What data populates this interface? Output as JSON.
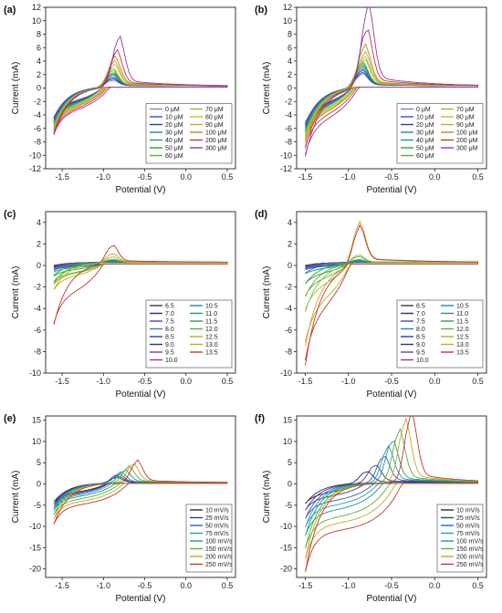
{
  "chart_data": [
    {
      "panel": "(a)",
      "type": "line",
      "xlabel": "Potential (V)",
      "ylabel": "Current (mA)",
      "xlim": [
        -1.7,
        0.6
      ],
      "ylim": [
        -12,
        12
      ],
      "xticks": [
        -1.5,
        -1.0,
        -0.5,
        0.0,
        0.5
      ],
      "yticks": [
        -12,
        -10,
        -8,
        -6,
        -4,
        -2,
        0,
        2,
        4,
        6,
        8,
        10,
        12
      ],
      "legend_columns": 2,
      "legend_position": "bottom-right",
      "series": [
        {
          "name": "0 μM",
          "color": "#8a79d6",
          "peak_x": -0.9,
          "peak": 0.9,
          "cath": -4.6
        },
        {
          "name": "10 μM",
          "color": "#3f48cc",
          "peak_x": -0.9,
          "peak": 1.1,
          "cath": -4.8
        },
        {
          "name": "20 μM",
          "color": "#1f3fb5",
          "peak_x": -0.9,
          "peak": 1.3,
          "cath": -5.0
        },
        {
          "name": "30 μM",
          "color": "#2e7dbd",
          "peak_x": -0.9,
          "peak": 1.6,
          "cath": -5.2
        },
        {
          "name": "40 μM",
          "color": "#1f9a7a",
          "peak_x": -0.9,
          "peak": 1.8,
          "cath": -5.4
        },
        {
          "name": "50 μM",
          "color": "#2f9e44",
          "peak_x": -0.9,
          "peak": 2.0,
          "cath": -5.6
        },
        {
          "name": "60 μM",
          "color": "#58b031",
          "peak_x": -0.9,
          "peak": 2.3,
          "cath": -5.8
        },
        {
          "name": "70 μM",
          "color": "#8ebf3a",
          "peak_x": -0.9,
          "peak": 2.6,
          "cath": -6.0
        },
        {
          "name": "80 μM",
          "color": "#b5c23a",
          "peak_x": -0.88,
          "peak": 3.0,
          "cath": -6.2
        },
        {
          "name": "90 μM",
          "color": "#caa52f",
          "peak_x": -0.88,
          "peak": 3.5,
          "cath": -6.4
        },
        {
          "name": "100 μM",
          "color": "#c8851f",
          "peak_x": -0.87,
          "peak": 4.0,
          "cath": -6.6
        },
        {
          "name": "200 μM",
          "color": "#c0392b",
          "peak_x": -0.85,
          "peak": 5.0,
          "cath": -7.0
        },
        {
          "name": "300 μM",
          "color": "#8e3aa8",
          "peak_x": -0.82,
          "peak": 6.9,
          "cath": -7.3
        }
      ]
    },
    {
      "panel": "(b)",
      "type": "line",
      "xlabel": "Potential (V)",
      "ylabel": "Current (mA)",
      "xlim": [
        -1.6,
        0.6
      ],
      "ylim": [
        -12,
        12
      ],
      "xticks": [
        -1.5,
        -1.0,
        -0.5,
        0.0,
        0.5
      ],
      "yticks": [
        -12,
        -10,
        -8,
        -6,
        -4,
        -2,
        0,
        2,
        4,
        6,
        8,
        10,
        12
      ],
      "legend_columns": 2,
      "legend_position": "bottom-right",
      "series": [
        {
          "name": "0 μM",
          "color": "#8a79d6",
          "peak_x": -0.85,
          "peak": 1.8,
          "cath": -5.5
        },
        {
          "name": "10 μM",
          "color": "#3f48cc",
          "peak_x": -0.85,
          "peak": 2.0,
          "cath": -5.8
        },
        {
          "name": "20 μM",
          "color": "#1f3fb5",
          "peak_x": -0.85,
          "peak": 2.3,
          "cath": -6.0
        },
        {
          "name": "30 μM",
          "color": "#2e7dbd",
          "peak_x": -0.85,
          "peak": 2.6,
          "cath": -6.2
        },
        {
          "name": "40 μM",
          "color": "#1f9a7a",
          "peak_x": -0.85,
          "peak": 2.9,
          "cath": -6.5
        },
        {
          "name": "50 μM",
          "color": "#2f9e44",
          "peak_x": -0.85,
          "peak": 3.2,
          "cath": -6.8
        },
        {
          "name": "60 μM",
          "color": "#58b031",
          "peak_x": -0.85,
          "peak": 3.5,
          "cath": -7.0
        },
        {
          "name": "70 μM",
          "color": "#8ebf3a",
          "peak_x": -0.83,
          "peak": 3.9,
          "cath": -7.3
        },
        {
          "name": "80 μM",
          "color": "#b5c23a",
          "peak_x": -0.83,
          "peak": 4.3,
          "cath": -7.6
        },
        {
          "name": "90 μM",
          "color": "#caa52f",
          "peak_x": -0.82,
          "peak": 4.8,
          "cath": -8.0
        },
        {
          "name": "100 μM",
          "color": "#c8851f",
          "peak_x": -0.82,
          "peak": 5.8,
          "cath": -8.4
        },
        {
          "name": "200 μM",
          "color": "#c0392b",
          "peak_x": -0.8,
          "peak": 8.2,
          "cath": -9.3
        },
        {
          "name": "300 μM",
          "color": "#8e3aa8",
          "peak_x": -0.78,
          "peak": 11.2,
          "cath": -10.5
        }
      ]
    },
    {
      "panel": "(c)",
      "type": "line",
      "xlabel": "Potential (V)",
      "ylabel": "Current (mA)",
      "xlim": [
        -1.7,
        0.6
      ],
      "ylim": [
        -10,
        5
      ],
      "xticks": [
        -1.5,
        -1.0,
        -0.5,
        0.0,
        0.5
      ],
      "yticks": [
        -10,
        -8,
        -6,
        -4,
        -2,
        0,
        2,
        4
      ],
      "legend_columns": 2,
      "legend_position": "bottom-right",
      "series": [
        {
          "name": "6.5",
          "color": "#3a3a3a",
          "peak_x": -0.9,
          "peak": 0.0,
          "cath": -0.3
        },
        {
          "name": "7.0",
          "color": "#2a2a7a",
          "peak_x": -0.9,
          "peak": 0.0,
          "cath": -0.3
        },
        {
          "name": "7.5",
          "color": "#3f48cc",
          "peak_x": -0.9,
          "peak": 0.0,
          "cath": -0.35
        },
        {
          "name": "8.0",
          "color": "#2e7dbd",
          "peak_x": -0.9,
          "peak": 0.0,
          "cath": -0.35
        },
        {
          "name": "8.5",
          "color": "#1f3fb5",
          "peak_x": -0.9,
          "peak": 0.05,
          "cath": -0.4
        },
        {
          "name": "9.0",
          "color": "#2a2a9a",
          "peak_x": -0.9,
          "peak": 0.05,
          "cath": -0.4
        },
        {
          "name": "9.5",
          "color": "#6b3fb5",
          "peak_x": -0.9,
          "peak": 0.05,
          "cath": -0.45
        },
        {
          "name": "10.0",
          "color": "#8e3aa8",
          "peak_x": -0.9,
          "peak": 0.1,
          "cath": -0.5
        },
        {
          "name": "10.5",
          "color": "#2e7dbd",
          "peak_x": -0.9,
          "peak": 0.1,
          "cath": -0.6
        },
        {
          "name": "11.0",
          "color": "#1f9a7a",
          "peak_x": -0.9,
          "peak": 0.15,
          "cath": -0.8
        },
        {
          "name": "11.5",
          "color": "#2f9e44",
          "peak_x": -0.9,
          "peak": 0.2,
          "cath": -1.2
        },
        {
          "name": "12.0",
          "color": "#58b031",
          "peak_x": -0.9,
          "peak": 0.3,
          "cath": -1.8
        },
        {
          "name": "12.5",
          "color": "#8ebf3a",
          "peak_x": -0.9,
          "peak": 0.5,
          "cath": -2.0
        },
        {
          "name": "13.0",
          "color": "#caa52f",
          "peak_x": -0.9,
          "peak": 0.8,
          "cath": -2.5
        },
        {
          "name": "13.5",
          "color": "#c0392b",
          "peak_x": -0.9,
          "peak": 1.6,
          "cath": -5.8
        }
      ]
    },
    {
      "panel": "(d)",
      "type": "line",
      "xlabel": "Potential (V)",
      "ylabel": "Current (mA)",
      "xlim": [
        -1.6,
        0.6
      ],
      "ylim": [
        -10,
        5
      ],
      "xticks": [
        -1.5,
        -1.0,
        -0.5,
        0.0,
        0.5
      ],
      "yticks": [
        -10,
        -8,
        -6,
        -4,
        -2,
        0,
        2,
        4
      ],
      "legend_columns": 2,
      "legend_position": "bottom-right",
      "series": [
        {
          "name": "6.5",
          "color": "#3a3a3a",
          "peak_x": -0.9,
          "peak": 0.0,
          "cath": -0.3
        },
        {
          "name": "7.0",
          "color": "#2a2a7a",
          "peak_x": -0.9,
          "peak": 0.0,
          "cath": -0.3
        },
        {
          "name": "7.5",
          "color": "#3f48cc",
          "peak_x": -0.9,
          "peak": 0.0,
          "cath": -0.35
        },
        {
          "name": "8.0",
          "color": "#2e7dbd",
          "peak_x": -0.9,
          "peak": 0.0,
          "cath": -0.35
        },
        {
          "name": "8.5",
          "color": "#1f3fb5",
          "peak_x": -0.9,
          "peak": 0.05,
          "cath": -0.4
        },
        {
          "name": "9.0",
          "color": "#2a2a9a",
          "peak_x": -0.9,
          "peak": 0.05,
          "cath": -0.4
        },
        {
          "name": "9.5",
          "color": "#6b3fb5",
          "peak_x": -0.9,
          "peak": 0.05,
          "cath": -0.45
        },
        {
          "name": "10.0",
          "color": "#8e3aa8",
          "peak_x": -0.9,
          "peak": 0.1,
          "cath": -0.5
        },
        {
          "name": "10.5",
          "color": "#2e7dbd",
          "peak_x": -0.9,
          "peak": 0.1,
          "cath": -0.6
        },
        {
          "name": "11.0",
          "color": "#1f9a7a",
          "peak_x": -0.9,
          "peak": 0.2,
          "cath": -1.0
        },
        {
          "name": "11.5",
          "color": "#2f9e44",
          "peak_x": -0.9,
          "peak": 0.3,
          "cath": -2.0
        },
        {
          "name": "12.0",
          "color": "#58b031",
          "peak_x": -0.9,
          "peak": 0.6,
          "cath": -3.2
        },
        {
          "name": "12.5",
          "color": "#8ebf3a",
          "peak_x": -0.9,
          "peak": 0.8,
          "cath": -4.6
        },
        {
          "name": "13.0",
          "color": "#caa52f",
          "peak_x": -0.88,
          "peak": 3.6,
          "cath": -7.8
        },
        {
          "name": "13.5",
          "color": "#c0392b",
          "peak_x": -0.88,
          "peak": 3.3,
          "cath": -9.6
        }
      ]
    },
    {
      "panel": "(e)",
      "type": "line",
      "xlabel": "Potential (V)",
      "ylabel": "Current (mA)",
      "xlim": [
        -1.7,
        0.6
      ],
      "ylim": [
        -22,
        16
      ],
      "xticks": [
        -1.5,
        -1.0,
        -0.5,
        0.0,
        0.5
      ],
      "yticks": [
        -20,
        -15,
        -10,
        -5,
        0,
        5,
        10,
        15
      ],
      "legend_columns": 1,
      "legend_position": "bottom-right",
      "series": [
        {
          "name": "10 mV/s",
          "color": "#2a2a4a",
          "peak_x": -0.85,
          "peak": 1.2,
          "cath": -4.5
        },
        {
          "name": "25 mV/s",
          "color": "#3a3a8a",
          "peak_x": -0.84,
          "peak": 1.5,
          "cath": -5.0
        },
        {
          "name": "50 mV/s",
          "color": "#2e5dbd",
          "peak_x": -0.83,
          "peak": 2.0,
          "cath": -5.5
        },
        {
          "name": "75 mV/s",
          "color": "#2a9ab0",
          "peak_x": -0.8,
          "peak": 2.3,
          "cath": -6.0
        },
        {
          "name": "100 mV/s",
          "color": "#1f9a7a",
          "peak_x": -0.75,
          "peak": 2.8,
          "cath": -6.5
        },
        {
          "name": "150 mV/s",
          "color": "#58b031",
          "peak_x": -0.7,
          "peak": 3.5,
          "cath": -7.5
        },
        {
          "name": "200 mV/s",
          "color": "#caa52f",
          "peak_x": -0.65,
          "peak": 4.2,
          "cath": -8.5
        },
        {
          "name": "250 mV/s",
          "color": "#c0392b",
          "peak_x": -0.6,
          "peak": 4.8,
          "cath": -9.8
        }
      ]
    },
    {
      "panel": "(f)",
      "type": "line",
      "xlabel": "Potential (V)",
      "ylabel": "Current (mA)",
      "xlim": [
        -1.6,
        0.6
      ],
      "ylim": [
        -22,
        16
      ],
      "xticks": [
        -1.5,
        -1.0,
        -0.5,
        0.0,
        0.5
      ],
      "yticks": [
        -20,
        -15,
        -10,
        -5,
        0,
        5,
        10,
        15
      ],
      "legend_columns": 1,
      "legend_position": "bottom-right",
      "series": [
        {
          "name": "10 mV/s",
          "color": "#2a2a4a",
          "peak_x": -0.8,
          "peak": 2.6,
          "cath": -5.0
        },
        {
          "name": "25 mV/s",
          "color": "#3a3a8a",
          "peak_x": -0.7,
          "peak": 4.0,
          "cath": -6.5
        },
        {
          "name": "50 mV/s",
          "color": "#2e5dbd",
          "peak_x": -0.6,
          "peak": 6.0,
          "cath": -8.5
        },
        {
          "name": "75 mV/s",
          "color": "#2a9ab0",
          "peak_x": -0.55,
          "peak": 7.8,
          "cath": -10.5
        },
        {
          "name": "100 mV/s",
          "color": "#1f9a7a",
          "peak_x": -0.5,
          "peak": 9.5,
          "cath": -12.5
        },
        {
          "name": "150 mV/s",
          "color": "#58b031",
          "peak_x": -0.42,
          "peak": 11.5,
          "cath": -15.5
        },
        {
          "name": "200 mV/s",
          "color": "#caa52f",
          "peak_x": -0.35,
          "peak": 13.5,
          "cath": -18.0
        },
        {
          "name": "250 mV/s",
          "color": "#c0392b",
          "peak_x": -0.28,
          "peak": 15.0,
          "cath": -21.0
        }
      ]
    }
  ]
}
